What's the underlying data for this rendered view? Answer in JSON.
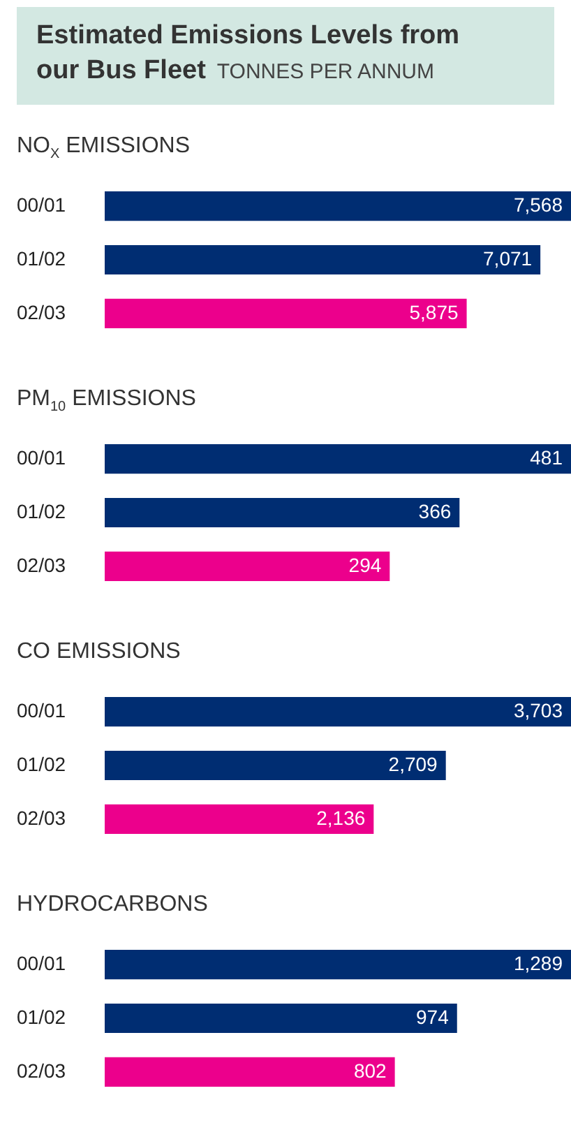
{
  "chart_data": [
    {
      "type": "other",
      "title": "Estimated Emissions Levels from our Bus Fleet",
      "subtitle": "TONNES PER ANNUM"
    },
    {
      "type": "bar",
      "orientation": "horizontal",
      "title": "NO$_{X}$ EMISSIONS",
      "categories": [
        "00/01",
        "01/02",
        "02/03"
      ],
      "values": [
        7568,
        7071,
        5875
      ],
      "colors": [
        "#002d72",
        "#002d72",
        "#ec008c"
      ],
      "value_labels": [
        "7,568",
        "7,071",
        "5,875"
      ]
    },
    {
      "type": "bar",
      "orientation": "horizontal",
      "title": "PM$_{10}$  EMISSIONS",
      "categories": [
        "00/01",
        "01/02",
        "02/03"
      ],
      "values": [
        481,
        366,
        294
      ],
      "colors": [
        "#002d72",
        "#002d72",
        "#ec008c"
      ],
      "value_labels": [
        "481",
        "366",
        "294"
      ]
    },
    {
      "type": "bar",
      "orientation": "horizontal",
      "title": "CO  EMISSIONS",
      "categories": [
        "00/01",
        "01/02",
        "02/03"
      ],
      "values": [
        3703,
        2709,
        2136
      ],
      "colors": [
        "#002d72",
        "#002d72",
        "#ec008c"
      ],
      "value_labels": [
        "3,703",
        "2,709",
        "2,136"
      ]
    },
    {
      "type": "bar",
      "orientation": "horizontal",
      "title": "HYDROCARBONS",
      "categories": [
        "00/01",
        "01/02",
        "02/03"
      ],
      "values": [
        1289,
        974,
        802
      ],
      "colors": [
        "#002d72",
        "#002d72",
        "#ec008c"
      ],
      "value_labels": [
        "1,289",
        "974",
        "802"
      ]
    }
  ]
}
